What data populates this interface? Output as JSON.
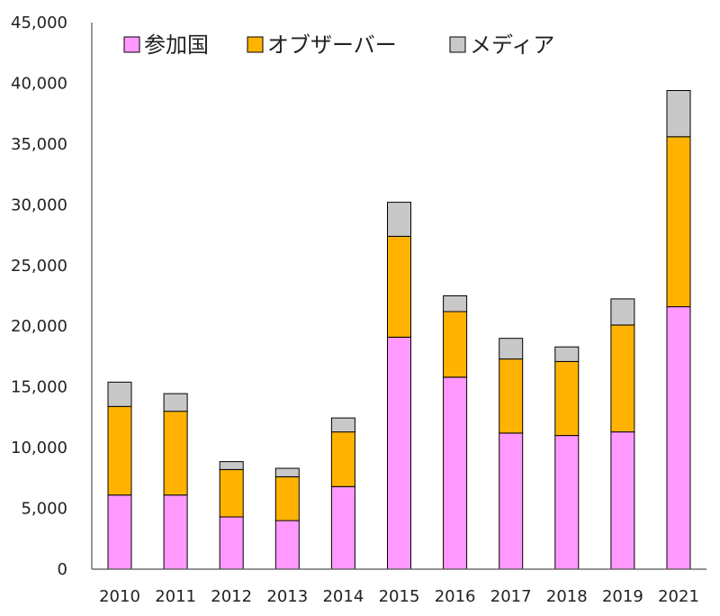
{
  "chart_data": {
    "type": "bar",
    "stacked": true,
    "categories": [
      "2010",
      "2011",
      "2012",
      "2013",
      "2014",
      "2015",
      "2016",
      "2017",
      "2018",
      "2019",
      "2021"
    ],
    "series": [
      {
        "name": "参加国",
        "color": "#ff99ff",
        "values": [
          6100,
          6100,
          4300,
          4000,
          6800,
          19100,
          15800,
          11200,
          11000,
          11300,
          21600
        ]
      },
      {
        "name": "オブザーバー",
        "color": "#ffb300",
        "values": [
          7300,
          6900,
          3900,
          3600,
          4500,
          8300,
          5400,
          6100,
          6100,
          8800,
          14000
        ]
      },
      {
        "name": "メディア",
        "color": "#c8c8c8",
        "values": [
          2000,
          1450,
          650,
          700,
          1150,
          2800,
          1300,
          1700,
          1200,
          2150,
          3800
        ]
      }
    ],
    "ylim": [
      0,
      45000
    ],
    "yticks": [
      "0",
      "5,000",
      "10,000",
      "15,000",
      "20,000",
      "25,000",
      "30,000",
      "35,000",
      "40,000",
      "45,000"
    ],
    "ytick_values": [
      0,
      5000,
      10000,
      15000,
      20000,
      25000,
      30000,
      35000,
      40000,
      45000
    ],
    "legend_position": "top",
    "grid": false,
    "title": "",
    "xlabel": "",
    "ylabel": ""
  }
}
